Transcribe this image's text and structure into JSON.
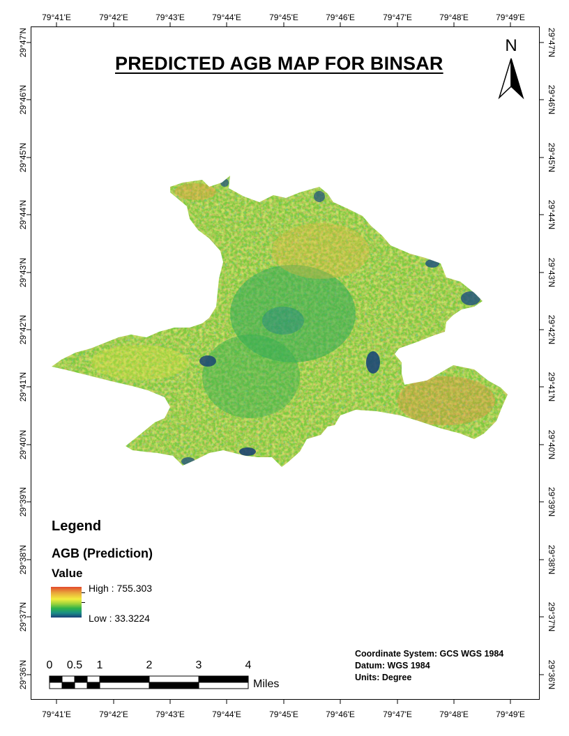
{
  "map": {
    "title": "PREDICTED AGB MAP FOR BINSAR",
    "north_arrow_label": "N",
    "longitude_labels": [
      "79°41'E",
      "79°42'E",
      "79°43'E",
      "79°44'E",
      "79°45'E",
      "79°46'E",
      "79°47'E",
      "79°48'E",
      "79°49'E"
    ],
    "latitude_labels": [
      "29°47'N",
      "29°46'N",
      "29°45'N",
      "29°44'N",
      "29°43'N",
      "29°42'N",
      "29°41'N",
      "29°40'N",
      "29°39'N",
      "29°38'N",
      "29°37'N",
      "29°36'N"
    ]
  },
  "legend": {
    "heading": "Legend",
    "layer_name": "AGB (Prediction)",
    "field_label": "Value",
    "high_label": "High : 755.303",
    "low_label": "Low : 33.3224",
    "ramp_colors": [
      "#e24a2c",
      "#e8a13a",
      "#f2ee3e",
      "#9fd43b",
      "#2fb34a",
      "#1a8f86",
      "#1a3f7a"
    ]
  },
  "scale_bar": {
    "ticks": [
      "0",
      "0.5",
      "1",
      "2",
      "3",
      "4"
    ],
    "units": "Miles"
  },
  "coordinate_info": {
    "system": "Coordinate System: GCS WGS 1984",
    "datum": "Datum: WGS 1984",
    "units": "Units: Degree"
  }
}
